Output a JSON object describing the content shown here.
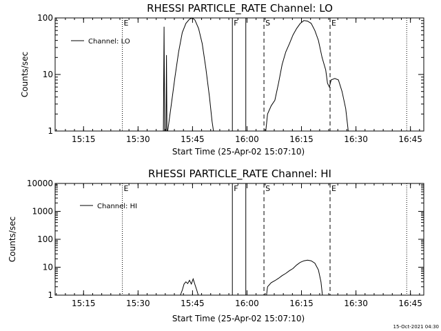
{
  "footer": {
    "timestamp": "15-Oct-2021 04:30"
  },
  "chart_data": [
    {
      "type": "line",
      "title": "RHESSI PARTICLE_RATE Channel: LO",
      "xlabel": "Start Time (25-Apr-02 15:07:10)",
      "ylabel": "Counts/sec",
      "x_unit": "minutes since 15:07:10",
      "xlim": [
        0,
        101.5
      ],
      "ylim": [
        1,
        100
      ],
      "yscale": "log",
      "xticks": [
        {
          "x": 7.83,
          "label": "15:15"
        },
        {
          "x": 22.83,
          "label": "15:30"
        },
        {
          "x": 37.83,
          "label": "15:45"
        },
        {
          "x": 52.83,
          "label": "16:00"
        },
        {
          "x": 67.83,
          "label": "16:15"
        },
        {
          "x": 82.83,
          "label": "16:30"
        },
        {
          "x": 97.83,
          "label": "16:45"
        }
      ],
      "yticks": [
        {
          "y": 1,
          "label": "1"
        },
        {
          "y": 10,
          "label": "10"
        },
        {
          "y": 100,
          "label": "100"
        }
      ],
      "legend": {
        "position": "top-left",
        "entries": [
          "Channel: LO"
        ]
      },
      "series": [
        {
          "name": "Channel: LO",
          "points": [
            [
              29.8,
              1
            ],
            [
              30.0,
              70
            ],
            [
              30.15,
              1
            ],
            [
              30.5,
              1
            ],
            [
              30.65,
              22
            ],
            [
              30.8,
              1
            ],
            [
              31.0,
              1
            ],
            [
              32.0,
              3
            ],
            [
              33.0,
              9
            ],
            [
              34.0,
              25
            ],
            [
              35.0,
              55
            ],
            [
              36.0,
              80
            ],
            [
              37.0,
              95
            ],
            [
              37.8,
              100
            ],
            [
              38.5,
              92
            ],
            [
              39.5,
              65
            ],
            [
              40.5,
              35
            ],
            [
              41.5,
              13
            ],
            [
              42.5,
              4
            ],
            [
              43.2,
              1.5
            ],
            [
              43.6,
              1
            ],
            [
              58.0,
              1
            ],
            [
              58.5,
              2
            ],
            [
              59.5,
              2.8
            ],
            [
              60.5,
              3.5
            ],
            [
              61.5,
              7
            ],
            [
              62.5,
              15
            ],
            [
              63.5,
              25
            ],
            [
              64.5,
              35
            ],
            [
              65.5,
              50
            ],
            [
              66.5,
              65
            ],
            [
              67.5,
              80
            ],
            [
              68.5,
              90
            ],
            [
              69.5,
              88
            ],
            [
              70.5,
              80
            ],
            [
              71.5,
              60
            ],
            [
              72.5,
              40
            ],
            [
              73.5,
              20
            ],
            [
              74.5,
              12
            ],
            [
              75.0,
              7
            ],
            [
              75.5,
              6
            ],
            [
              76.0,
              8
            ],
            [
              77.0,
              8.5
            ],
            [
              78.0,
              8
            ],
            [
              79.0,
              5
            ],
            [
              80.0,
              2.5
            ],
            [
              80.7,
              1
            ]
          ]
        }
      ],
      "markers": [
        {
          "x": 18.5,
          "label": "E",
          "style": "dotted"
        },
        {
          "x": 48.8,
          "label": "F",
          "style": "solid"
        },
        {
          "x": 52.5,
          "label": "",
          "style": "solid"
        },
        {
          "x": 57.5,
          "label": "S",
          "style": "dashed"
        },
        {
          "x": 75.7,
          "label": "E",
          "style": "dashed"
        },
        {
          "x": 96.8,
          "label": "",
          "style": "dotted"
        }
      ]
    },
    {
      "type": "line",
      "title": "RHESSI PARTICLE_RATE Channel: HI",
      "xlabel": "Start Time (25-Apr-02 15:07:10)",
      "ylabel": "Counts/sec",
      "x_unit": "minutes since 15:07:10",
      "xlim": [
        0,
        101.5
      ],
      "ylim": [
        1,
        10000
      ],
      "yscale": "log",
      "xticks": [
        {
          "x": 7.83,
          "label": "15:15"
        },
        {
          "x": 22.83,
          "label": "15:30"
        },
        {
          "x": 37.83,
          "label": "15:45"
        },
        {
          "x": 52.83,
          "label": "16:00"
        },
        {
          "x": 67.83,
          "label": "16:15"
        },
        {
          "x": 82.83,
          "label": "16:30"
        },
        {
          "x": 97.83,
          "label": "16:45"
        }
      ],
      "yticks": [
        {
          "y": 1,
          "label": "1"
        },
        {
          "y": 10,
          "label": "10"
        },
        {
          "y": 100,
          "label": "100"
        },
        {
          "y": 1000,
          "label": "1000"
        },
        {
          "y": 10000,
          "label": "10000"
        }
      ],
      "legend": {
        "position": "top-left",
        "entries": [
          "Channel: HI"
        ]
      },
      "series": [
        {
          "name": "Channel: HI",
          "points": [
            [
              34.5,
              1
            ],
            [
              35.0,
              1.5
            ],
            [
              35.5,
              2.5
            ],
            [
              36.0,
              3
            ],
            [
              36.5,
              2.6
            ],
            [
              37.0,
              3.4
            ],
            [
              37.5,
              2.5
            ],
            [
              38.0,
              3.8
            ],
            [
              38.5,
              2.4
            ],
            [
              39.0,
              1.5
            ],
            [
              39.4,
              1
            ],
            [
              58.2,
              1
            ],
            [
              58.5,
              2
            ],
            [
              59.5,
              2.8
            ],
            [
              60.5,
              3.3
            ],
            [
              61.5,
              4
            ],
            [
              62.5,
              5
            ],
            [
              63.5,
              6
            ],
            [
              64.5,
              7.5
            ],
            [
              65.5,
              9
            ],
            [
              66.5,
              12
            ],
            [
              67.5,
              15
            ],
            [
              68.5,
              17
            ],
            [
              69.5,
              18
            ],
            [
              70.5,
              17
            ],
            [
              71.5,
              14
            ],
            [
              72.5,
              8
            ],
            [
              73.2,
              3
            ],
            [
              73.6,
              1
            ]
          ]
        }
      ],
      "markers": [
        {
          "x": 18.5,
          "label": "E",
          "style": "dotted"
        },
        {
          "x": 48.8,
          "label": "F",
          "style": "solid"
        },
        {
          "x": 52.5,
          "label": "",
          "style": "solid"
        },
        {
          "x": 57.5,
          "label": "S",
          "style": "dashed"
        },
        {
          "x": 75.7,
          "label": "E",
          "style": "dashed"
        },
        {
          "x": 96.8,
          "label": "",
          "style": "dotted"
        }
      ]
    }
  ]
}
